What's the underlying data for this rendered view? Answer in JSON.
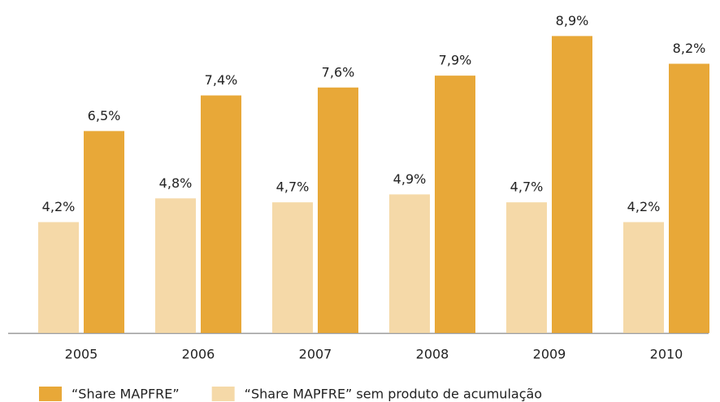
{
  "chart_data": {
    "type": "bar",
    "categories": [
      "2005",
      "2006",
      "2007",
      "2008",
      "2009",
      "2010"
    ],
    "series": [
      {
        "name": "“Share MAPFRE” sem produto de acumulação",
        "color": "#f5d9a8",
        "values": [
          4.2,
          4.8,
          4.7,
          4.9,
          4.7,
          4.2
        ],
        "value_labels": [
          "4,2%",
          "4,8%",
          "4,7%",
          "4,9%",
          "4,7%",
          "4,2%"
        ]
      },
      {
        "name": "“Share MAPFRE”",
        "color": "#e8a838",
        "values": [
          6.5,
          7.4,
          7.6,
          7.9,
          8.9,
          8.2
        ],
        "value_labels": [
          "6,5%",
          "7,4%",
          "7,6%",
          "7,9%",
          "8,9%",
          "8,2%"
        ]
      }
    ],
    "legend_order": [
      1,
      0
    ],
    "ylim": [
      1.4,
      9.4
    ]
  }
}
